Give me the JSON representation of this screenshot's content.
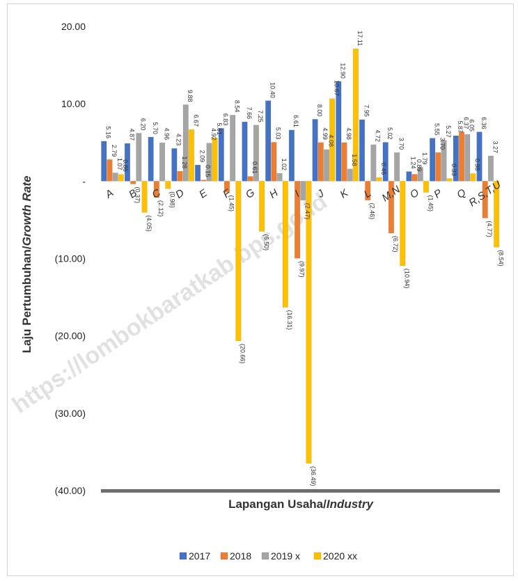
{
  "chart_data": {
    "type": "bar",
    "xlabel": "Lapangan Usaha/Industry",
    "xlabel_parts": [
      "Lapangan Usaha/",
      "Industry"
    ],
    "ylabel": "Laju Pertumbuhan/Growth Rate",
    "ylabel_parts": [
      "Laju Pertumbuhan/",
      "Growth Rate"
    ],
    "ylim": [
      -40,
      20
    ],
    "yticks": [
      "20.00",
      "10.00",
      "-",
      "(10.00)",
      "(20.00)",
      "(30.00)",
      "(40.00)"
    ],
    "grid": false,
    "legend_position": "bottom",
    "watermark": "https://lombokbaratkab.bps.go.id",
    "categories": [
      "A",
      "B",
      "C",
      "D",
      "E",
      "F",
      "G",
      "H",
      "I",
      "J",
      "K",
      "L",
      "M,N",
      "O",
      "P",
      "Q",
      "R,S,T,U"
    ],
    "series": [
      {
        "name": "2017",
        "color": "#4472c4",
        "values": [
          5.16,
          4.87,
          5.7,
          4.23,
          2.09,
          6.83,
          7.66,
          10.4,
          6.61,
          8.0,
          12.9,
          7.95,
          5.02,
          1.24,
          5.55,
          5.87,
          6.36
        ],
        "labels": [
          "5.16",
          "4.87",
          "5.70",
          "4.23",
          "2.09",
          "6.83",
          "7.66",
          "10.40",
          "6.61",
          "8.00",
          "12.90",
          "7.95",
          "5.02",
          "1.24",
          "5.55",
          "5.87",
          "6.36"
        ]
      },
      {
        "name": "2018",
        "color": "#ed7d31",
        "values": [
          2.79,
          -0.37,
          -2.12,
          1.28,
          0.15,
          -1.45,
          0.61,
          5.03,
          -9.97,
          4.99,
          4.98,
          -2.46,
          -6.72,
          0.89,
          3.7,
          6.37,
          -4.77
        ],
        "labels": [
          "2.79",
          "(0.37)",
          "(2.12)",
          "1.28",
          "0.15",
          "(1.45)",
          "0.61",
          "5.03",
          "(9.97)",
          "4.99",
          "4.98",
          "(2.46)",
          "(6.72)",
          "0.89",
          "3.70",
          "6.37",
          "(4.77)"
        ]
      },
      {
        "name": "2019 x",
        "color": "#a5a5a5",
        "values": [
          1.07,
          6.2,
          4.96,
          9.88,
          4.92,
          8.54,
          7.25,
          1.02,
          -2.47,
          4.08,
          1.58,
          4.72,
          3.7,
          1.79,
          5.27,
          6.05,
          3.27
        ],
        "labels": [
          "1.07",
          "6.20",
          "4.96",
          "9.88",
          "4.92",
          "8.54",
          "7.25",
          "1.02",
          "(2.47)",
          "4.08",
          "1.58",
          "4.72",
          "3.70",
          "1.79",
          "5.27",
          "6.05",
          "3.27"
        ]
      },
      {
        "name": "2020 xx",
        "color": "#ffc000",
        "values": [
          0.86,
          -4.05,
          -0.98,
          6.67,
          5.61,
          -20.66,
          -6.5,
          -16.31,
          -36.49,
          10.67,
          17.11,
          0.46,
          -10.94,
          -1.45,
          0.33,
          0.98,
          -8.54
        ],
        "labels": [
          "0.86",
          "(4.05)",
          "(0.98)",
          "6.67",
          "5.61",
          "(20.66)",
          "(6.50)",
          "(16.31)",
          "(36.49)",
          "10.67",
          "17.11",
          "0.46",
          "(10.94)",
          "(1.45)",
          "0.33",
          "0.98",
          "(8.54)"
        ]
      }
    ]
  }
}
